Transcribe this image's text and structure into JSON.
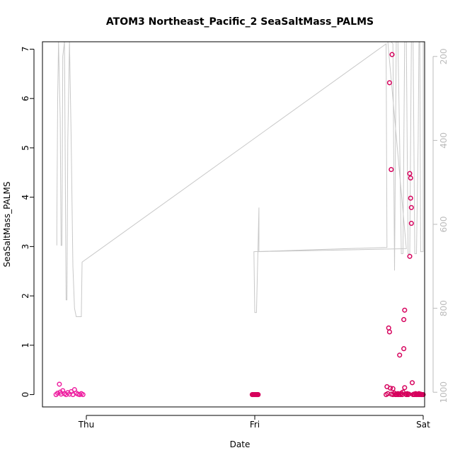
{
  "chart_data": {
    "type": "scatter",
    "title": "ATOM3 Northeast_Pacific_2 SeaSaltMass_PALMS",
    "xlabel": "Date",
    "ylabel": "SeaSaltMass_PALMS",
    "x_ticks": [
      "Thu",
      "Fri",
      "Sat"
    ],
    "y_ticks": [
      "0",
      "1",
      "2",
      "3",
      "4",
      "5",
      "6",
      "7"
    ],
    "y2_ticks": [
      "200",
      "400",
      "600",
      "800",
      "1000"
    ],
    "ylim": [
      -0.25,
      7.15
    ],
    "y2lim": [
      1035,
      165
    ],
    "grid": false,
    "colors": {
      "points_early": "#ee1ea0",
      "points_late": "#d6005c",
      "pressure_line": "#c8c8c8",
      "axis": "#000000",
      "right_axis": "#bbbbbb"
    },
    "series": [
      {
        "role": "scatter",
        "values": [
          {
            "x": -0.18,
            "y": 0.0
          },
          {
            "x": -0.17,
            "y": 0.03
          },
          {
            "x": -0.16,
            "y": 0.21
          },
          {
            "x": -0.155,
            "y": 0.05
          },
          {
            "x": -0.15,
            "y": 0.01
          },
          {
            "x": -0.14,
            "y": 0.08
          },
          {
            "x": -0.13,
            "y": 0.02
          },
          {
            "x": -0.12,
            "y": 0.0
          },
          {
            "x": -0.11,
            "y": 0.04
          },
          {
            "x": -0.1,
            "y": 0.01
          },
          {
            "x": -0.09,
            "y": 0.06
          },
          {
            "x": -0.08,
            "y": 0.0
          },
          {
            "x": -0.07,
            "y": 0.1
          },
          {
            "x": -0.06,
            "y": 0.03
          },
          {
            "x": -0.05,
            "y": 0.01
          },
          {
            "x": -0.04,
            "y": 0.0
          },
          {
            "x": -0.03,
            "y": 0.02
          },
          {
            "x": -0.02,
            "y": 0.0
          },
          {
            "x": 0.985,
            "y": 0.0
          },
          {
            "x": 0.99,
            "y": 0.0
          },
          {
            "x": 0.995,
            "y": 0.0
          },
          {
            "x": 1.0,
            "y": 0.0
          },
          {
            "x": 1.005,
            "y": 0.0
          },
          {
            "x": 1.01,
            "y": 0.0
          },
          {
            "x": 1.015,
            "y": 0.0
          },
          {
            "x": 1.02,
            "y": 0.0
          },
          {
            "x": 1.78,
            "y": 0.0
          },
          {
            "x": 1.785,
            "y": 0.16
          },
          {
            "x": 1.79,
            "y": 0.02
          },
          {
            "x": 1.795,
            "y": 1.35
          },
          {
            "x": 1.8,
            "y": 6.32
          },
          {
            "x": 1.8,
            "y": 1.27
          },
          {
            "x": 1.805,
            "y": 0.13
          },
          {
            "x": 1.81,
            "y": 4.56
          },
          {
            "x": 1.81,
            "y": 0.01
          },
          {
            "x": 1.815,
            "y": 6.89
          },
          {
            "x": 1.82,
            "y": 0.12
          },
          {
            "x": 1.82,
            "y": 0.0
          },
          {
            "x": 1.83,
            "y": 0.03
          },
          {
            "x": 1.835,
            "y": 0.0
          },
          {
            "x": 1.84,
            "y": 0.01
          },
          {
            "x": 1.845,
            "y": 0.0
          },
          {
            "x": 1.85,
            "y": 0.02
          },
          {
            "x": 1.855,
            "y": 0.0
          },
          {
            "x": 1.86,
            "y": 0.8
          },
          {
            "x": 1.865,
            "y": 0.0
          },
          {
            "x": 1.87,
            "y": 0.03
          },
          {
            "x": 1.875,
            "y": 0.0
          },
          {
            "x": 1.88,
            "y": 0.05
          },
          {
            "x": 1.885,
            "y": 1.52
          },
          {
            "x": 1.885,
            "y": 0.93
          },
          {
            "x": 1.89,
            "y": 1.71
          },
          {
            "x": 1.89,
            "y": 0.14
          },
          {
            "x": 1.895,
            "y": 0.01
          },
          {
            "x": 1.9,
            "y": 0.0
          },
          {
            "x": 1.905,
            "y": 0.02
          },
          {
            "x": 1.91,
            "y": 0.0
          },
          {
            "x": 1.915,
            "y": 0.01
          },
          {
            "x": 1.92,
            "y": 2.8
          },
          {
            "x": 1.92,
            "y": 4.48
          },
          {
            "x": 1.925,
            "y": 4.39
          },
          {
            "x": 1.925,
            "y": 3.98
          },
          {
            "x": 1.93,
            "y": 3.79
          },
          {
            "x": 1.93,
            "y": 3.47
          },
          {
            "x": 1.935,
            "y": 0.24
          },
          {
            "x": 1.94,
            "y": 0.0
          },
          {
            "x": 1.945,
            "y": 0.01
          },
          {
            "x": 1.95,
            "y": 0.0
          },
          {
            "x": 1.955,
            "y": 0.02
          },
          {
            "x": 1.96,
            "y": 0.0
          },
          {
            "x": 1.965,
            "y": 0.01
          },
          {
            "x": 1.97,
            "y": 0.0
          },
          {
            "x": 1.975,
            "y": 0.02
          },
          {
            "x": 1.98,
            "y": 0.0
          },
          {
            "x": 1.985,
            "y": 0.01
          },
          {
            "x": 1.99,
            "y": 0.0
          },
          {
            "x": 1.995,
            "y": 0.0
          },
          {
            "x": 2.0,
            "y": 0.0
          }
        ]
      },
      {
        "role": "line-right-axis",
        "values": [
          {
            "x": -0.175,
            "y": 650
          },
          {
            "x": -0.175,
            "y": 612
          },
          {
            "x": -0.17,
            "y": 300
          },
          {
            "x": -0.165,
            "y": 120
          },
          {
            "x": -0.155,
            "y": 350
          },
          {
            "x": -0.15,
            "y": 650
          },
          {
            "x": -0.145,
            "y": 650
          },
          {
            "x": -0.14,
            "y": 200
          },
          {
            "x": -0.13,
            "y": 120
          },
          {
            "x": -0.12,
            "y": 780
          },
          {
            "x": -0.115,
            "y": 780
          },
          {
            "x": -0.11,
            "y": 400
          },
          {
            "x": -0.1,
            "y": 120
          },
          {
            "x": -0.09,
            "y": 400
          },
          {
            "x": -0.08,
            "y": 700
          },
          {
            "x": -0.07,
            "y": 800
          },
          {
            "x": -0.06,
            "y": 820
          },
          {
            "x": -0.05,
            "y": 820
          },
          {
            "x": -0.04,
            "y": 820
          },
          {
            "x": -0.03,
            "y": 820
          },
          {
            "x": -0.025,
            "y": 690
          },
          {
            "x": 1.78,
            "y": 170
          },
          {
            "x": 1.785,
            "y": 655
          },
          {
            "x": 0.995,
            "y": 665
          },
          {
            "x": 1.0,
            "y": 810
          },
          {
            "x": 1.01,
            "y": 810
          },
          {
            "x": 1.02,
            "y": 640
          },
          {
            "x": 1.025,
            "y": 560
          },
          {
            "x": 1.025,
            "y": 665
          },
          {
            "x": 1.9,
            "y": 658
          },
          {
            "x": 1.79,
            "y": 120
          },
          {
            "x": 1.8,
            "y": 150
          },
          {
            "x": 1.81,
            "y": 120
          },
          {
            "x": 1.82,
            "y": 170
          },
          {
            "x": 1.83,
            "y": 710
          },
          {
            "x": 1.84,
            "y": 150
          },
          {
            "x": 1.85,
            "y": 120
          },
          {
            "x": 1.86,
            "y": 400
          },
          {
            "x": 1.87,
            "y": 670
          },
          {
            "x": 1.88,
            "y": 670
          },
          {
            "x": 1.89,
            "y": 120
          },
          {
            "x": 1.9,
            "y": 150
          },
          {
            "x": 1.91,
            "y": 670
          },
          {
            "x": 1.92,
            "y": 670
          },
          {
            "x": 1.93,
            "y": 150
          },
          {
            "x": 1.94,
            "y": 120
          },
          {
            "x": 1.95,
            "y": 670
          },
          {
            "x": 1.96,
            "y": 670
          },
          {
            "x": 1.97,
            "y": 400
          },
          {
            "x": 1.975,
            "y": 120
          },
          {
            "x": 1.98,
            "y": 120
          },
          {
            "x": 1.985,
            "y": 665
          },
          {
            "x": 2.0,
            "y": 665
          },
          {
            "x": 2.0,
            "y": 120
          }
        ]
      }
    ]
  }
}
